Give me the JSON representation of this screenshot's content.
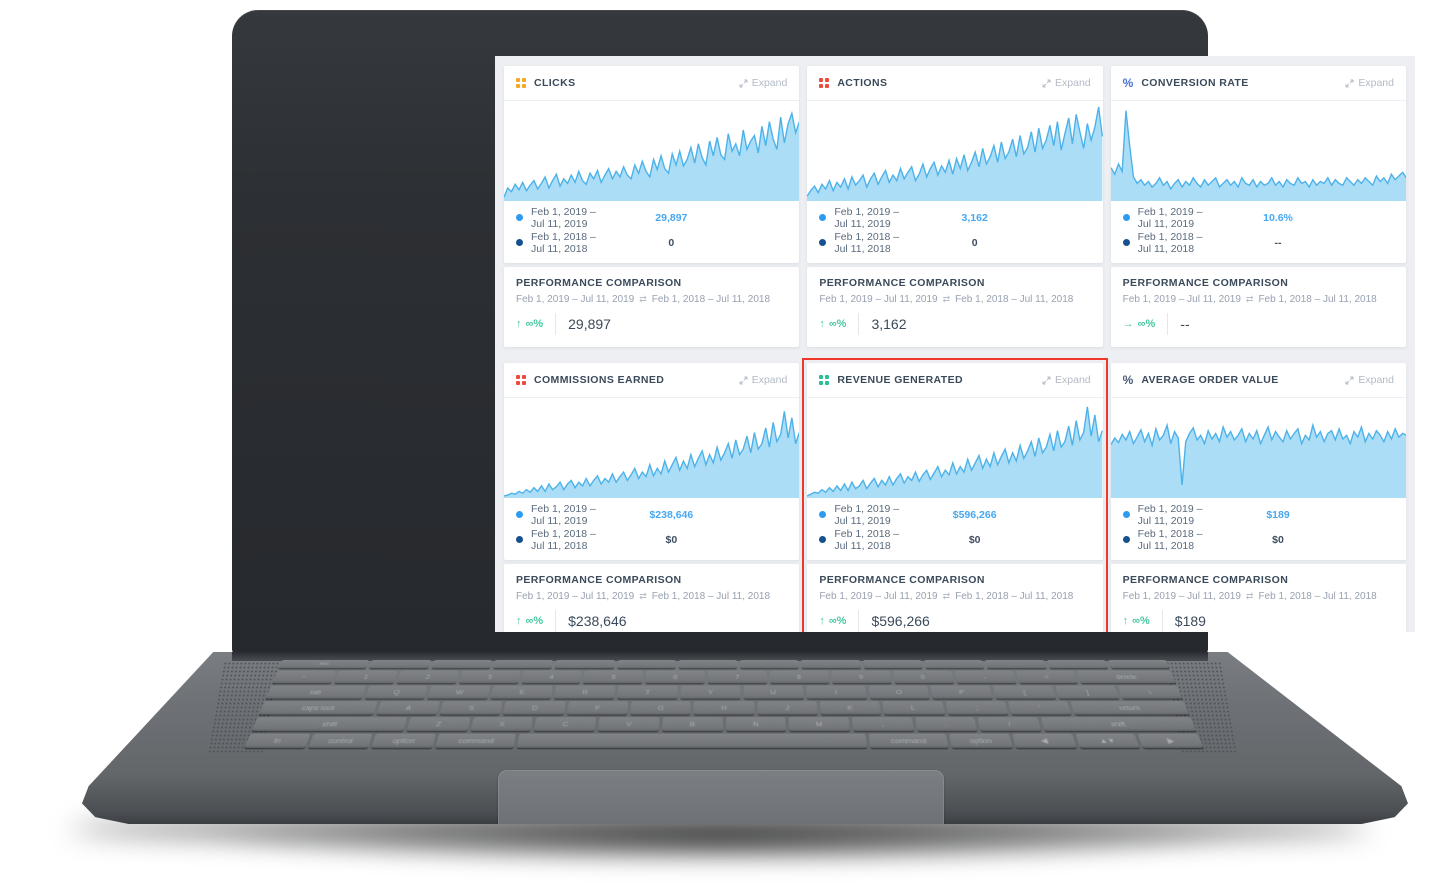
{
  "colors": {
    "highlight": "#f0372b",
    "chart_fill": "#a7dbf6",
    "chart_line": "#4cb2e9",
    "legend_dot_2019": "#2d9cf0",
    "legend_dot_2018": "#15508f",
    "value_blue": "#45a8f2",
    "value_dark": "#3f4e63",
    "green": "#47c7a2"
  },
  "dashboard": {
    "cards": [
      {
        "title": "CLICKS",
        "icon": "grid-dots-icon",
        "icon_color": "#f6a821",
        "expand_label": "Expand",
        "highlighted": false,
        "legend": [
          {
            "label": "Feb 1, 2019 – Jul 11, 2019",
            "value": "29,897",
            "value_style": "blue"
          },
          {
            "label": "Feb 1, 2018 – Jul 11, 2018",
            "value": "0",
            "value_style": "dark"
          }
        ],
        "performance": {
          "title": "PERFORMANCE COMPARISON",
          "range_a": "Feb 1, 2019 – Jul 11, 2019",
          "range_b": "Feb 1, 2018 – Jul 11, 2018",
          "trend": "up",
          "change": "∞%",
          "value": "29,897"
        }
      },
      {
        "title": "ACTIONS",
        "icon": "grid-dots-icon",
        "icon_color": "#ee4b3e",
        "expand_label": "Expand",
        "highlighted": false,
        "legend": [
          {
            "label": "Feb 1, 2019 – Jul 11, 2019",
            "value": "3,162",
            "value_style": "blue"
          },
          {
            "label": "Feb 1, 2018 – Jul 11, 2018",
            "value": "0",
            "value_style": "dark"
          }
        ],
        "performance": {
          "title": "PERFORMANCE COMPARISON",
          "range_a": "Feb 1, 2019 – Jul 11, 2019",
          "range_b": "Feb 1, 2018 – Jul 11, 2018",
          "trend": "up",
          "change": "∞%",
          "value": "3,162"
        }
      },
      {
        "title": "CONVERSION RATE",
        "icon": "percent-icon",
        "icon_color": "#4a6fd8",
        "expand_label": "Expand",
        "highlighted": false,
        "legend": [
          {
            "label": "Feb 1, 2019 – Jul 11, 2019",
            "value": "10.6%",
            "value_style": "blue"
          },
          {
            "label": "Feb 1, 2018 – Jul 11, 2018",
            "value": "--",
            "value_style": "dark"
          }
        ],
        "performance": {
          "title": "PERFORMANCE COMPARISON",
          "range_a": "Feb 1, 2019 – Jul 11, 2019",
          "range_b": "Feb 1, 2018 – Jul 11, 2018",
          "trend": "flat",
          "change": "∞%",
          "value": "--"
        }
      },
      {
        "title": "COMMISSIONS EARNED",
        "icon": "grid-dots-icon",
        "icon_color": "#ee4b3e",
        "expand_label": "Expand",
        "highlighted": false,
        "legend": [
          {
            "label": "Feb 1, 2019 – Jul 11, 2019",
            "value": "$238,646",
            "value_style": "blue"
          },
          {
            "label": "Feb 1, 2018 – Jul 11, 2018",
            "value": "$0",
            "value_style": "dark"
          }
        ],
        "performance": {
          "title": "PERFORMANCE COMPARISON",
          "range_a": "Feb 1, 2019 – Jul 11, 2019",
          "range_b": "Feb 1, 2018 – Jul 11, 2018",
          "trend": "up",
          "change": "∞%",
          "value": "$238,646"
        }
      },
      {
        "title": "REVENUE GENERATED",
        "icon": "grid-dots-icon",
        "icon_color": "#2bbf96",
        "expand_label": "Expand",
        "highlighted": true,
        "legend": [
          {
            "label": "Feb 1, 2019 – Jul 11, 2019",
            "value": "$596,266",
            "value_style": "blue"
          },
          {
            "label": "Feb 1, 2018 – Jul 11, 2018",
            "value": "$0",
            "value_style": "dark"
          }
        ],
        "performance": {
          "title": "PERFORMANCE COMPARISON",
          "range_a": "Feb 1, 2019 – Jul 11, 2019",
          "range_b": "Feb 1, 2018 – Jul 11, 2018",
          "trend": "up",
          "change": "∞%",
          "value": "$596,266"
        }
      },
      {
        "title": "AVERAGE ORDER VALUE",
        "icon": "percent-icon",
        "icon_color": "#4a5a78",
        "expand_label": "Expand",
        "highlighted": false,
        "legend": [
          {
            "label": "Feb 1, 2019 – Jul 11, 2019",
            "value": "$189",
            "value_style": "blue"
          },
          {
            "label": "Feb 1, 2018 – Jul 11, 2018",
            "value": "$0",
            "value_style": "dark"
          }
        ],
        "performance": {
          "title": "PERFORMANCE COMPARISON",
          "range_a": "Feb 1, 2019 – Jul 11, 2019",
          "range_b": "Feb 1, 2018 – Jul 11, 2018",
          "trend": "up",
          "change": "∞%",
          "value": "$189"
        }
      }
    ]
  },
  "chart_data": [
    {
      "type": "area",
      "title": "CLICKS sparkline",
      "note": "values normalized to % of chart height, no axes shown",
      "series": [
        {
          "name": "Feb 1, 2019 – Jul 11, 2019",
          "values": [
            2,
            12,
            8,
            16,
            10,
            18,
            9,
            15,
            20,
            11,
            17,
            24,
            12,
            20,
            27,
            14,
            22,
            17,
            26,
            18,
            30,
            20,
            16,
            28,
            22,
            31,
            18,
            26,
            33,
            22,
            30,
            24,
            35,
            26,
            22,
            37,
            28,
            41,
            30,
            24,
            43,
            32,
            47,
            33,
            28,
            49,
            37,
            52,
            36,
            43,
            56,
            39,
            60,
            45,
            37,
            63,
            47,
            67,
            48,
            43,
            71,
            52,
            60,
            47,
            75,
            54,
            63,
            69,
            50,
            79,
            58,
            84,
            65,
            54,
            89,
            61,
            82,
            93,
            72,
            84
          ]
        },
        {
          "name": "Feb 1, 2018 – Jul 11, 2018",
          "constant_value": 0
        }
      ]
    },
    {
      "type": "area",
      "title": "ACTIONS sparkline",
      "note": "normalized 0-100",
      "series": [
        {
          "name": "Feb 1, 2019 – Jul 11, 2019",
          "values": [
            3,
            9,
            14,
            7,
            16,
            11,
            20,
            9,
            18,
            13,
            22,
            11,
            24,
            15,
            20,
            26,
            13,
            22,
            28,
            16,
            24,
            31,
            18,
            26,
            20,
            33,
            22,
            29,
            35,
            20,
            27,
            38,
            24,
            33,
            40,
            26,
            36,
            29,
            42,
            27,
            44,
            33,
            48,
            31,
            40,
            51,
            35,
            55,
            38,
            46,
            58,
            40,
            62,
            44,
            51,
            65,
            46,
            69,
            49,
            56,
            73,
            51,
            77,
            55,
            64,
            80,
            58,
            84,
            53,
            71,
            88,
            60,
            92,
            73,
            55,
            82,
            64,
            78,
            100,
            68
          ]
        },
        {
          "name": "Feb 1, 2018 – Jul 11, 2018",
          "constant_value": 0
        }
      ]
    },
    {
      "type": "area",
      "title": "CONVERSION RATE sparkline",
      "note": "normalized 0-100, early spike",
      "series": [
        {
          "name": "Feb 1, 2019 – Jul 11, 2019",
          "values": [
            34,
            27,
            38,
            30,
            96,
            58,
            24,
            17,
            21,
            15,
            19,
            13,
            17,
            23,
            15,
            19,
            11,
            17,
            21,
            13,
            19,
            15,
            23,
            17,
            13,
            21,
            15,
            19,
            23,
            13,
            17,
            21,
            15,
            19,
            13,
            23,
            17,
            15,
            21,
            13,
            19,
            15,
            17,
            23,
            15,
            19,
            13,
            21,
            17,
            15,
            23,
            17,
            19,
            13,
            21,
            15,
            19,
            17,
            23,
            15,
            21,
            17,
            15,
            23,
            19,
            15,
            21,
            17,
            23,
            19,
            15,
            25,
            19,
            23,
            17,
            27,
            21,
            25,
            29,
            23
          ]
        },
        {
          "name": "Feb 1, 2018 – Jul 11, 2018",
          "constant_value": 0
        }
      ]
    },
    {
      "type": "area",
      "title": "COMMISSIONS EARNED sparkline",
      "note": "normalized 0-100",
      "series": [
        {
          "name": "Feb 1, 2019 – Jul 11, 2019",
          "values": [
            0,
            1,
            3,
            2,
            5,
            3,
            7,
            4,
            9,
            5,
            11,
            5,
            13,
            7,
            10,
            15,
            7,
            13,
            17,
            9,
            15,
            11,
            19,
            11,
            17,
            22,
            13,
            19,
            15,
            24,
            15,
            21,
            26,
            17,
            23,
            30,
            19,
            26,
            21,
            34,
            22,
            30,
            24,
            38,
            26,
            34,
            42,
            28,
            38,
            30,
            45,
            32,
            41,
            49,
            34,
            45,
            36,
            53,
            39,
            47,
            57,
            41,
            61,
            45,
            51,
            65,
            47,
            69,
            51,
            57,
            74,
            53,
            80,
            59,
            67,
            92,
            63,
            85,
            57,
            69
          ]
        },
        {
          "name": "Feb 1, 2018 – Jul 11, 2018",
          "constant_value": 0
        }
      ]
    },
    {
      "type": "area",
      "title": "REVENUE GENERATED sparkline",
      "note": "normalized 0-100",
      "series": [
        {
          "name": "Feb 1, 2019 – Jul 11, 2019",
          "values": [
            0,
            2,
            4,
            3,
            7,
            4,
            9,
            5,
            11,
            6,
            13,
            6,
            15,
            8,
            11,
            17,
            8,
            14,
            19,
            10,
            17,
            12,
            21,
            12,
            19,
            24,
            14,
            21,
            17,
            26,
            16,
            23,
            28,
            18,
            25,
            32,
            21,
            28,
            23,
            36,
            24,
            32,
            26,
            40,
            28,
            36,
            44,
            30,
            40,
            32,
            47,
            34,
            43,
            51,
            36,
            47,
            38,
            55,
            41,
            49,
            59,
            43,
            63,
            47,
            53,
            67,
            49,
            71,
            53,
            59,
            76,
            55,
            82,
            61,
            69,
            97,
            65,
            88,
            59,
            71
          ]
        },
        {
          "name": "Feb 1, 2018 – Jul 11, 2018",
          "constant_value": 0
        }
      ]
    },
    {
      "type": "area",
      "title": "AVERAGE ORDER VALUE sparkline",
      "note": "normalized 0-100, steady band with one dip",
      "series": [
        {
          "name": "Feb 1, 2019 – Jul 11, 2019",
          "values": [
            56,
            63,
            58,
            67,
            61,
            70,
            57,
            64,
            72,
            59,
            68,
            55,
            73,
            61,
            66,
            77,
            57,
            70,
            63,
            12,
            59,
            68,
            74,
            61,
            66,
            57,
            71,
            62,
            68,
            59,
            75,
            64,
            70,
            61,
            66,
            73,
            59,
            68,
            62,
            71,
            57,
            66,
            75,
            61,
            70,
            64,
            59,
            71,
            62,
            68,
            73,
            57,
            66,
            61,
            77,
            64,
            70,
            59,
            68,
            71,
            61,
            73,
            62,
            66,
            57,
            70,
            64,
            75,
            59,
            68,
            62,
            71,
            66,
            59,
            70,
            62,
            73,
            64,
            68,
            66
          ]
        },
        {
          "name": "Feb 1, 2018 – Jul 11, 2018",
          "constant_value": 0
        }
      ]
    }
  ],
  "laptop": {
    "keyboard": {
      "rows": [
        [
          {
            "l": "esc",
            "w": 1.5
          },
          {
            "l": ""
          },
          {
            "l": ""
          },
          {
            "l": ""
          },
          {
            "l": ""
          },
          {
            "l": ""
          },
          {
            "l": ""
          },
          {
            "l": ""
          },
          {
            "l": ""
          },
          {
            "l": ""
          },
          {
            "l": ""
          },
          {
            "l": ""
          },
          {
            "l": ""
          },
          {
            "l": ""
          }
        ],
        [
          {
            "l": "~"
          },
          {
            "l": "1"
          },
          {
            "l": "2"
          },
          {
            "l": "3"
          },
          {
            "l": "4"
          },
          {
            "l": "5"
          },
          {
            "l": "6"
          },
          {
            "l": "7"
          },
          {
            "l": "8"
          },
          {
            "l": "9"
          },
          {
            "l": "0"
          },
          {
            "l": "-"
          },
          {
            "l": "="
          },
          {
            "l": "delete",
            "w": 1.6
          }
        ],
        [
          {
            "l": "tab",
            "w": 1.6
          },
          {
            "l": "Q"
          },
          {
            "l": "W"
          },
          {
            "l": "E"
          },
          {
            "l": "R"
          },
          {
            "l": "T"
          },
          {
            "l": "Y"
          },
          {
            "l": "U"
          },
          {
            "l": "I"
          },
          {
            "l": "O"
          },
          {
            "l": "P"
          },
          {
            "l": "["
          },
          {
            "l": "]"
          },
          {
            "l": "\\"
          }
        ],
        [
          {
            "l": "caps lock",
            "w": 1.9
          },
          {
            "l": "A"
          },
          {
            "l": "S"
          },
          {
            "l": "D"
          },
          {
            "l": "F"
          },
          {
            "l": "G"
          },
          {
            "l": "H"
          },
          {
            "l": "J"
          },
          {
            "l": "K"
          },
          {
            "l": "L"
          },
          {
            "l": ";"
          },
          {
            "l": "'"
          },
          {
            "l": "return",
            "w": 1.9
          }
        ],
        [
          {
            "l": "shift",
            "w": 2.5
          },
          {
            "l": "Z"
          },
          {
            "l": "X"
          },
          {
            "l": "C"
          },
          {
            "l": "V"
          },
          {
            "l": "B"
          },
          {
            "l": "N"
          },
          {
            "l": "M"
          },
          {
            "l": ","
          },
          {
            "l": "."
          },
          {
            "l": "/"
          },
          {
            "l": "shift",
            "w": 2.5
          }
        ],
        [
          {
            "l": "fn"
          },
          {
            "l": "control"
          },
          {
            "l": "option"
          },
          {
            "l": "command",
            "w": 1.3
          },
          {
            "l": "",
            "w": 5.8
          },
          {
            "l": "command",
            "w": 1.3
          },
          {
            "l": "option"
          },
          {
            "l": "◀"
          },
          {
            "l": "▲▼"
          },
          {
            "l": "▶"
          }
        ]
      ]
    }
  }
}
